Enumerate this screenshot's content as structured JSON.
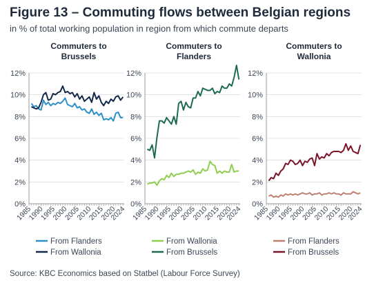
{
  "figure": {
    "title": "Figure 13 – Commuting flows between Belgian regions",
    "subtitle": "in % of total working population in region from which commute departs",
    "source": "Source: KBC Economics based on Statbel (Labour Force Survey)"
  },
  "colors": {
    "from_flanders_to_brussels": "#2c8fc9",
    "from_wallonia_to_brussels": "#13294b",
    "from_wallonia_to_flanders": "#8fce4e",
    "from_brussels_to_flanders": "#1c6b50",
    "from_flanders_to_wallonia": "#c08070",
    "from_brussels_to_wallonia": "#7b1428",
    "grid": "#d0d0d0",
    "axis": "#999999"
  },
  "chart_data": [
    {
      "type": "line",
      "title": "Commuters to Brussels",
      "title_lines": [
        "Commuters to",
        "Brussels"
      ],
      "x": [
        1986,
        1987,
        1988,
        1989,
        1990,
        1991,
        1992,
        1993,
        1994,
        1995,
        1996,
        1997,
        1998,
        1999,
        2000,
        2001,
        2002,
        2003,
        2004,
        2005,
        2006,
        2007,
        2008,
        2009,
        2010,
        2011,
        2012,
        2013,
        2014,
        2015,
        2016,
        2017,
        2018,
        2019,
        2020,
        2021,
        2022,
        2023,
        2024
      ],
      "xticks": [
        "1985",
        "1990",
        "1995",
        "2000",
        "2005",
        "2010",
        "2015",
        "2020",
        "2024"
      ],
      "yticks": [
        "0%",
        "2%",
        "4%",
        "6%",
        "8%",
        "10%",
        "12%"
      ],
      "ylim": [
        0,
        12
      ],
      "ylabel": "",
      "grid": true,
      "legend_position": "bottom",
      "series": [
        {
          "name": "From Flanders",
          "color_key": "from_flanders_to_brussels",
          "values": [
            9.2,
            8.9,
            9.0,
            8.7,
            8.6,
            9.5,
            9.1,
            9.3,
            9.0,
            9.2,
            9.1,
            9.3,
            9.2,
            9.4,
            9.7,
            9.1,
            9.0,
            8.9,
            9.2,
            8.8,
            8.9,
            8.6,
            8.7,
            8.4,
            8.3,
            8.7,
            8.2,
            8.4,
            8.1,
            8.3,
            7.7,
            7.8,
            7.7,
            7.9,
            7.6,
            8.3,
            8.4,
            7.9,
            7.9
          ]
        },
        {
          "name": "From Wallonia",
          "color_key": "from_wallonia_to_brussels",
          "values": [
            8.9,
            8.8,
            8.7,
            8.8,
            9.3,
            10.0,
            10.2,
            9.5,
            9.6,
            10.1,
            10.0,
            10.2,
            10.3,
            10.8,
            10.2,
            10.3,
            10.1,
            10.2,
            9.8,
            10.1,
            9.6,
            9.9,
            9.4,
            9.6,
            9.8,
            9.3,
            10.2,
            9.6,
            9.9,
            9.3,
            9.0,
            9.4,
            9.2,
            9.6,
            9.4,
            9.8,
            9.9,
            9.5,
            9.8
          ]
        }
      ]
    },
    {
      "type": "line",
      "title": "Commuters to Flanders",
      "title_lines": [
        "Commuters to",
        "Flanders"
      ],
      "x": [
        1986,
        1987,
        1988,
        1989,
        1990,
        1991,
        1992,
        1993,
        1994,
        1995,
        1996,
        1997,
        1998,
        1999,
        2000,
        2001,
        2002,
        2003,
        2004,
        2005,
        2006,
        2007,
        2008,
        2009,
        2010,
        2011,
        2012,
        2013,
        2014,
        2015,
        2016,
        2017,
        2018,
        2019,
        2020,
        2021,
        2022,
        2023,
        2024
      ],
      "xticks": [
        "1985",
        "1990",
        "1995",
        "2000",
        "2005",
        "2010",
        "2015",
        "2020",
        "2024"
      ],
      "yticks": [
        "0%",
        "2%",
        "4%",
        "6%",
        "8%",
        "10%",
        "12%"
      ],
      "ylim": [
        0,
        12
      ],
      "ylabel": "",
      "grid": true,
      "legend_position": "bottom",
      "series": [
        {
          "name": "From Wallonia",
          "color_key": "from_wallonia_to_flanders",
          "values": [
            1.8,
            1.9,
            1.9,
            2.0,
            1.7,
            2.1,
            2.3,
            2.2,
            2.6,
            2.4,
            2.8,
            2.5,
            2.7,
            2.7,
            2.8,
            2.8,
            2.9,
            3.0,
            2.9,
            3.1,
            2.7,
            2.9,
            2.8,
            3.2,
            3.0,
            3.1,
            3.9,
            3.6,
            3.5,
            2.8,
            3.0,
            2.8,
            3.0,
            2.9,
            2.9,
            3.6,
            2.9,
            3.0,
            3.0
          ]
        },
        {
          "name": "From Brussels",
          "color_key": "from_brussels_to_flanders",
          "values": [
            5.0,
            4.9,
            5.4,
            4.2,
            6.1,
            7.6,
            7.6,
            7.4,
            7.9,
            7.6,
            7.3,
            8.0,
            7.3,
            9.2,
            9.4,
            8.6,
            9.3,
            8.9,
            8.8,
            9.7,
            9.7,
            10.3,
            9.9,
            10.6,
            10.5,
            10.4,
            10.4,
            10.6,
            10.1,
            10.3,
            10.2,
            10.8,
            10.6,
            10.6,
            11.0,
            10.8,
            11.6,
            12.7,
            11.4
          ]
        }
      ]
    },
    {
      "type": "line",
      "title": "Commuters to Wallonia",
      "title_lines": [
        "Commuters to",
        "Wallonia"
      ],
      "x": [
        1986,
        1987,
        1988,
        1989,
        1990,
        1991,
        1992,
        1993,
        1994,
        1995,
        1996,
        1997,
        1998,
        1999,
        2000,
        2001,
        2002,
        2003,
        2004,
        2005,
        2006,
        2007,
        2008,
        2009,
        2010,
        2011,
        2012,
        2013,
        2014,
        2015,
        2016,
        2017,
        2018,
        2019,
        2020,
        2021,
        2022,
        2023,
        2024
      ],
      "xticks": [
        "1985",
        "1990",
        "1995",
        "2000",
        "2005",
        "2010",
        "2015",
        "2020",
        "2024"
      ],
      "yticks": [
        "0%",
        "2%",
        "4%",
        "6%",
        "8%",
        "10%",
        "12%"
      ],
      "ylim": [
        0,
        12
      ],
      "ylabel": "",
      "grid": true,
      "legend_position": "bottom",
      "series": [
        {
          "name": "From Flanders",
          "color_key": "from_flanders_to_wallonia",
          "values": [
            0.7,
            0.8,
            0.6,
            0.7,
            0.6,
            0.8,
            0.7,
            0.9,
            0.8,
            0.9,
            0.8,
            0.9,
            0.8,
            0.9,
            1.0,
            0.9,
            0.9,
            1.0,
            0.8,
            0.9,
            0.9,
            1.0,
            0.8,
            0.9,
            0.9,
            1.0,
            0.9,
            1.0,
            0.9,
            0.9,
            0.8,
            1.0,
            0.9,
            0.9,
            0.9,
            1.1,
            1.0,
            0.9,
            1.0
          ]
        },
        {
          "name": "From Brussels",
          "color_key": "from_brussels_to_wallonia",
          "values": [
            2.1,
            2.4,
            2.3,
            2.8,
            2.6,
            3.0,
            3.2,
            3.7,
            3.6,
            4.0,
            3.9,
            3.6,
            3.7,
            4.0,
            3.5,
            3.9,
            3.8,
            4.1,
            4.2,
            3.5,
            4.6,
            4.1,
            4.3,
            4.2,
            4.6,
            4.4,
            4.7,
            4.8,
            4.8,
            4.8,
            4.7,
            4.9,
            5.5,
            4.9,
            5.3,
            4.8,
            4.7,
            4.6,
            5.4
          ]
        }
      ]
    }
  ]
}
